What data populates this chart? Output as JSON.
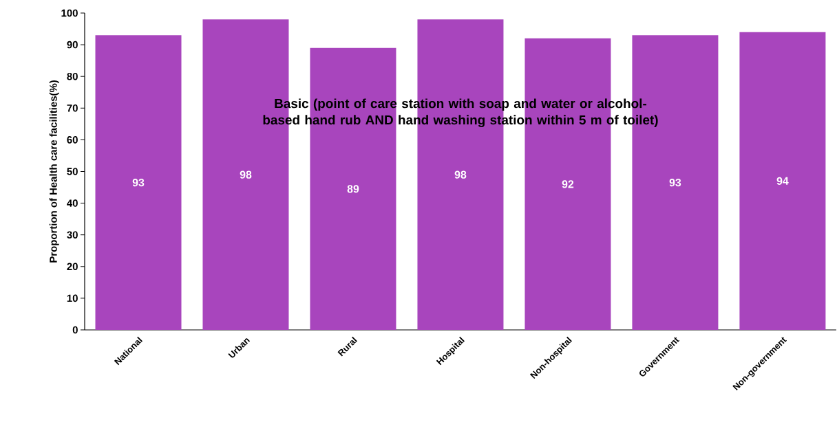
{
  "chart_data": {
    "type": "bar",
    "title": "Basic (point of care station with soap and water or alcohol-based hand rub AND hand washing station within 5 m of toilet)",
    "ylabel": "Proportion of Health care facilities(%)",
    "categories": [
      "National",
      "Urban",
      "Rural",
      "Hospital",
      "Non-hospital",
      "Government",
      "Non-government"
    ],
    "values": [
      93,
      98,
      89,
      98,
      92,
      93,
      94
    ],
    "color": "#a845bd",
    "ylim": [
      0,
      100
    ],
    "yticks": [
      0,
      10,
      20,
      30,
      40,
      50,
      60,
      70,
      80,
      90,
      100
    ],
    "data_labels": true
  }
}
